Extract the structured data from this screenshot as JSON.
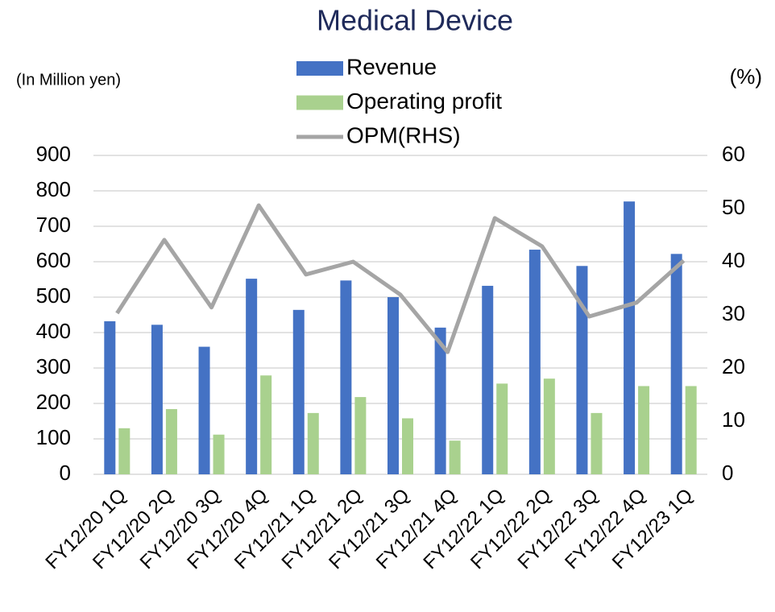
{
  "chart_data": {
    "type": "bar_line",
    "title": "Medical Device",
    "y_label": "(In Million yen)",
    "y2_label": "(%)",
    "categories": [
      "FY12/20 1Q",
      "FY12/20 2Q",
      "FY12/20 3Q",
      "FY12/20 4Q",
      "FY12/21 1Q",
      "FY12/21 2Q",
      "FY12/21 3Q",
      "FY12/21 4Q",
      "FY12/22 1Q",
      "FY12/22 2Q",
      "FY12/22 3Q",
      "FY12/22 4Q",
      "FY12/23 1Q"
    ],
    "series": [
      {
        "name": "Revenue",
        "type": "bar",
        "color": "#4472c4",
        "values": [
          432,
          422,
          360,
          552,
          464,
          547,
          500,
          414,
          532,
          634,
          588,
          770,
          622
        ]
      },
      {
        "name": "Operating profit",
        "type": "bar",
        "color": "#a9d18e",
        "values": [
          130,
          184,
          112,
          279,
          173,
          218,
          158,
          95,
          256,
          270,
          173,
          249,
          249
        ]
      },
      {
        "name": "OPM(RHS)",
        "type": "line",
        "axis": "y2",
        "color": "#a5a5a5",
        "values": [
          30.3,
          44.1,
          31.4,
          50.6,
          37.6,
          40.0,
          33.8,
          23.0,
          48.2,
          42.9,
          29.7,
          32.3,
          40.2
        ]
      }
    ],
    "ylim": [
      0,
      900
    ],
    "yticks": [
      0,
      100,
      200,
      300,
      400,
      500,
      600,
      700,
      800,
      900
    ],
    "y2lim": [
      0,
      60
    ],
    "y2ticks": [
      0,
      10,
      20,
      30,
      40,
      50,
      60
    ],
    "grid": true,
    "legend": "top"
  }
}
